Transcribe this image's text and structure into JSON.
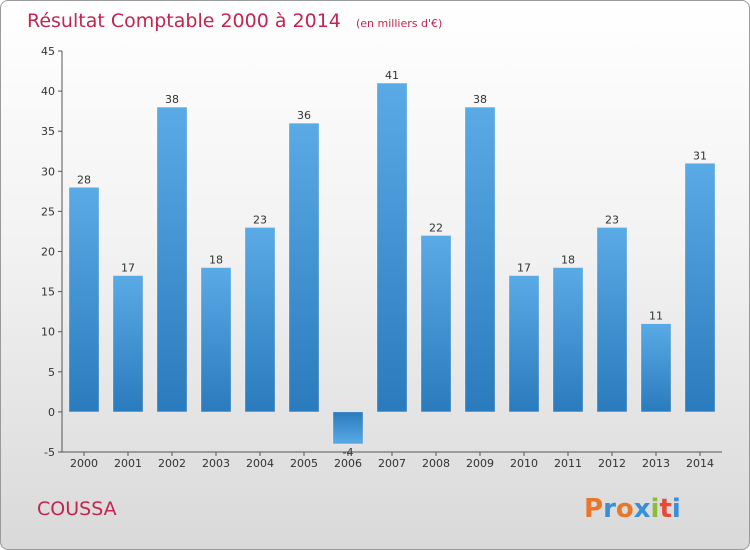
{
  "header": {
    "title": "Résultat Comptable 2000 à 2014",
    "unit": "(en milliers d'€)"
  },
  "footer": {
    "commune": "COUSSA",
    "logo_text": "Proxiti"
  },
  "colors": {
    "title": "#c2254f",
    "bar_top": "#5aaae6",
    "bar_bottom": "#2a7bbd",
    "logo_letters": [
      "#e8772a",
      "#3b8fd6",
      "#e8772a",
      "#3b8fd6",
      "#8cbd3a",
      "#e84a3a",
      "#3b8fd6"
    ]
  },
  "chart_data": {
    "type": "bar",
    "categories": [
      "2000",
      "2001",
      "2002",
      "2003",
      "2004",
      "2005",
      "2006",
      "2007",
      "2008",
      "2009",
      "2010",
      "2011",
      "2012",
      "2013",
      "2014"
    ],
    "values": [
      28,
      17,
      38,
      18,
      23,
      36,
      -4,
      41,
      22,
      38,
      17,
      18,
      23,
      11,
      31
    ],
    "ylim": [
      -5,
      45
    ],
    "yticks": [
      -5,
      0,
      5,
      10,
      15,
      20,
      25,
      30,
      35,
      40,
      45
    ],
    "grid": false,
    "data_labels": true
  }
}
